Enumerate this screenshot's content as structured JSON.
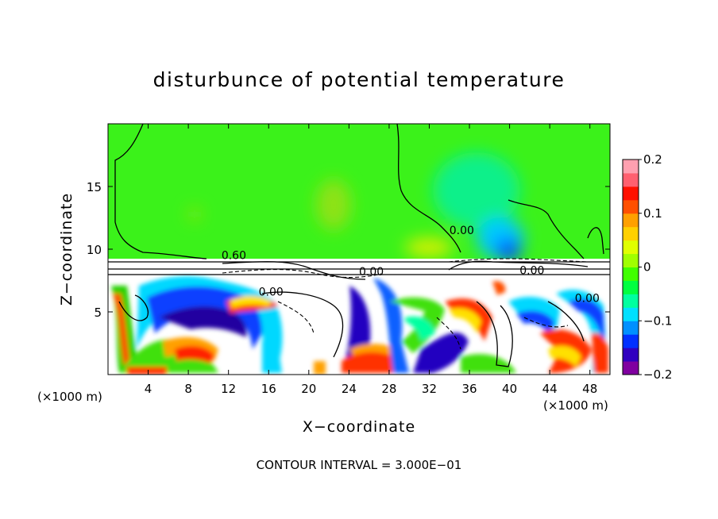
{
  "chart_data": {
    "type": "heatmap",
    "title": "disturbunce of potential temperature",
    "xlabel": "X−coordinate",
    "ylabel": "Z−coordinate",
    "x_unit_left": "(×1000 m)",
    "x_unit_right": "(×1000 m)",
    "footer": "CONTOUR INTERVAL = 3.000E−01",
    "xlim": [
      0,
      50
    ],
    "ylim": [
      0,
      20
    ],
    "x_ticks": [
      4,
      8,
      12,
      16,
      20,
      24,
      28,
      32,
      36,
      40,
      44,
      48
    ],
    "y_ticks": [
      5,
      10,
      15
    ],
    "colorbar": {
      "range": [
        -0.2,
        0.2
      ],
      "ticks": [
        {
          "value": 0.2,
          "label": "0.2"
        },
        {
          "value": 0.1,
          "label": "0.1"
        },
        {
          "value": 0,
          "label": "0"
        },
        {
          "value": -0.1,
          "label": "−0.1"
        },
        {
          "value": -0.2,
          "label": "−0.2"
        }
      ],
      "colors": [
        "#8000a0",
        "#3000c0",
        "#0030ff",
        "#0090ff",
        "#00e0ff",
        "#00ffa0",
        "#00ff40",
        "#40ff00",
        "#a0ff00",
        "#e0ff00",
        "#ffd000",
        "#ffa000",
        "#ff5000",
        "#ff1000",
        "#ff6070",
        "#ffa0b0"
      ]
    },
    "contour_labels": [
      {
        "text": "0.60",
        "x": 11.3,
        "z": 9.2
      },
      {
        "text": "0.00",
        "x": 15.0,
        "z": 6.3
      },
      {
        "text": "0.00",
        "x": 25.0,
        "z": 7.9
      },
      {
        "text": "0.00",
        "x": 34.0,
        "z": 11.2
      },
      {
        "text": "0.00",
        "x": 41.0,
        "z": 8.0
      },
      {
        "text": "0.00",
        "x": 46.5,
        "z": 5.8
      }
    ]
  }
}
